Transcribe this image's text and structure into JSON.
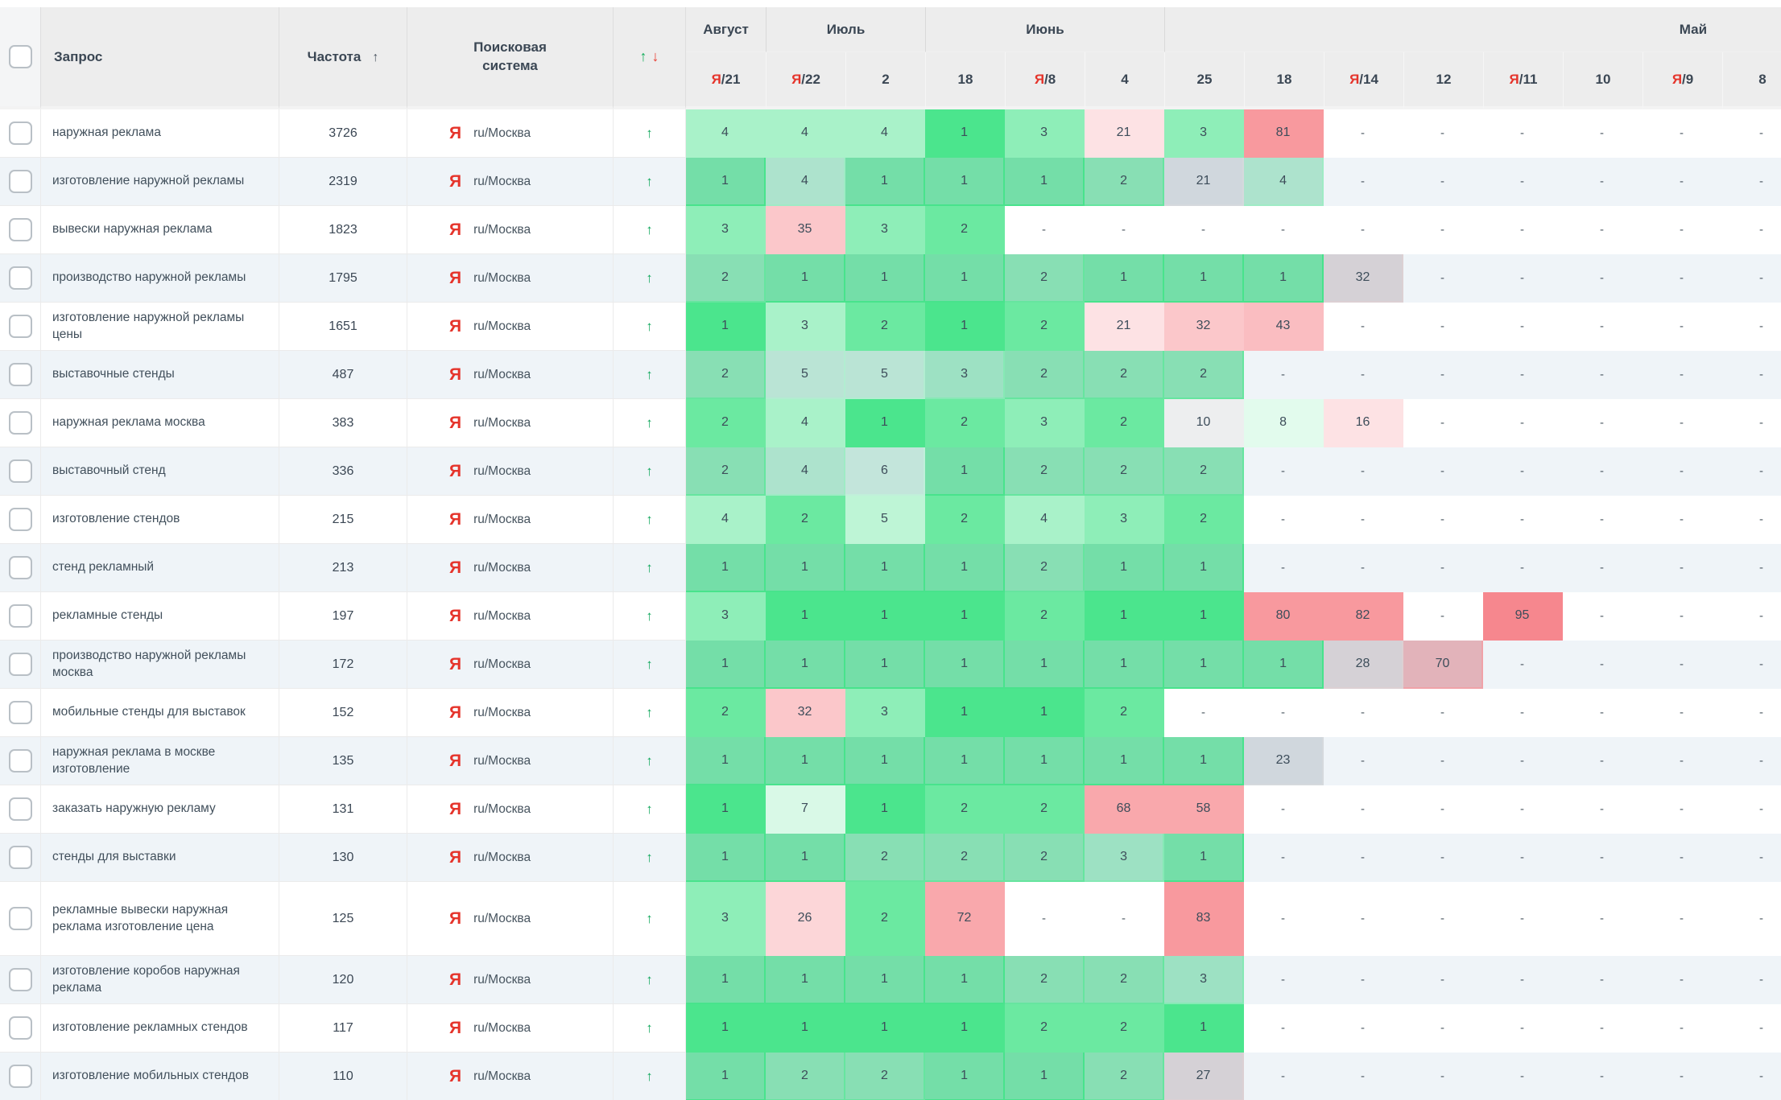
{
  "header": {
    "query": "Запрос",
    "frequency": "Частота",
    "frequency_sort_arrow": "↑",
    "search_engine": "Поисковая система",
    "trend_up": "↑",
    "trend_down": "↓"
  },
  "columns": {
    "months": [
      {
        "key": "august",
        "label": "Август",
        "span": 1
      },
      {
        "key": "july",
        "label": "Июль",
        "span": 2
      },
      {
        "key": "june",
        "label": "Июнь",
        "span": 3
      },
      {
        "key": "may",
        "label": "Май",
        "span": 8,
        "align": "right"
      }
    ],
    "dates": [
      {
        "ya": true,
        "day": "21"
      },
      {
        "ya": true,
        "day": "22"
      },
      {
        "ya": false,
        "day": "2"
      },
      {
        "ya": false,
        "day": "18"
      },
      {
        "ya": true,
        "day": "8"
      },
      {
        "ya": false,
        "day": "4"
      },
      {
        "ya": false,
        "day": "25"
      },
      {
        "ya": false,
        "day": "18"
      },
      {
        "ya": true,
        "day": "14"
      },
      {
        "ya": false,
        "day": "12"
      },
      {
        "ya": true,
        "day": "11"
      },
      {
        "ya": false,
        "day": "10"
      },
      {
        "ya": true,
        "day": "9"
      },
      {
        "ya": false,
        "day": "8"
      }
    ]
  },
  "search_engine": {
    "icon": "Я",
    "region": "ru/Москва"
  },
  "trend_arrow": "↑",
  "colors": {
    "accent_green": "#10a85c",
    "accent_red": "#e8392f",
    "yandex_red": "#e5342b",
    "stripe": "#eff4f8",
    "header_bg": "#ededed"
  },
  "palette": {
    "g1": "rgba(30,222,113,0.80)",
    "g2": "rgba(30,222,113,0.66)",
    "g3": "rgba(30,222,113,0.50)",
    "g4": "rgba(30,222,113,0.38)",
    "g5": "rgba(30,222,113,0.29)",
    "g6": "rgba(30,222,113,0.22)",
    "g7": "rgba(30,222,113,0.17)",
    "g8": "rgba(30,222,113,0.13)",
    "gy": "rgba(128,134,140,0.14)",
    "gy2": "rgba(128,134,140,0.24)",
    "gp": "rgba(165,105,105,0.26)",
    "p1": "rgba(241,62,72,0.15)",
    "p2": "rgba(241,62,72,0.21)",
    "p3": "rgba(241,62,72,0.29)",
    "p4": "rgba(241,62,72,0.34)",
    "r1": "rgba(241,62,72,0.45)",
    "r2": "rgba(241,62,72,0.53)",
    "r3": "rgba(241,62,72,0.62)",
    "w": "transparent"
  },
  "rows": [
    {
      "query": "наружная реклама",
      "frequency": "3726",
      "cells": [
        [
          "4",
          "g4"
        ],
        [
          "4",
          "g4"
        ],
        [
          "4",
          "g4"
        ],
        [
          "1",
          "g1"
        ],
        [
          "3",
          "g3"
        ],
        [
          "21",
          "p1"
        ],
        [
          "3",
          "g3"
        ],
        [
          "81",
          "r2"
        ],
        [
          "-",
          "w"
        ],
        [
          "-",
          "w"
        ],
        [
          "-",
          "w"
        ],
        [
          "-",
          "w"
        ],
        [
          "-",
          "w"
        ],
        [
          "-",
          "w"
        ]
      ]
    },
    {
      "query": "изготовление наружной рекламы",
      "frequency": "2319",
      "cells": [
        [
          "1",
          "g1"
        ],
        [
          "4",
          "g4"
        ],
        [
          "1",
          "g1"
        ],
        [
          "1",
          "g1"
        ],
        [
          "1",
          "g1"
        ],
        [
          "2",
          "g2"
        ],
        [
          "21",
          "gy2"
        ],
        [
          "4",
          "g4"
        ],
        [
          "-",
          "w"
        ],
        [
          "-",
          "w"
        ],
        [
          "-",
          "w"
        ],
        [
          "-",
          "w"
        ],
        [
          "-",
          "w"
        ],
        [
          "-",
          "w"
        ]
      ]
    },
    {
      "query": "вывески наружная реклама",
      "frequency": "1823",
      "cells": [
        [
          "3",
          "g3"
        ],
        [
          "35",
          "p3"
        ],
        [
          "3",
          "g3"
        ],
        [
          "2",
          "g2"
        ],
        [
          "-",
          "w"
        ],
        [
          "-",
          "w"
        ],
        [
          "-",
          "w"
        ],
        [
          "-",
          "w"
        ],
        [
          "-",
          "w"
        ],
        [
          "-",
          "w"
        ],
        [
          "-",
          "w"
        ],
        [
          "-",
          "w"
        ],
        [
          "-",
          "w"
        ],
        [
          "-",
          "w"
        ]
      ]
    },
    {
      "query": "производство наружной рекламы",
      "frequency": "1795",
      "cells": [
        [
          "2",
          "g2"
        ],
        [
          "1",
          "g1"
        ],
        [
          "1",
          "g1"
        ],
        [
          "1",
          "g1"
        ],
        [
          "2",
          "g2"
        ],
        [
          "1",
          "g1"
        ],
        [
          "1",
          "g1"
        ],
        [
          "1",
          "g1"
        ],
        [
          "32",
          "gp"
        ],
        [
          "-",
          "w"
        ],
        [
          "-",
          "w"
        ],
        [
          "-",
          "w"
        ],
        [
          "-",
          "w"
        ],
        [
          "-",
          "w"
        ]
      ]
    },
    {
      "query": "изготовление наружной рекламы цены",
      "frequency": "1651",
      "cells": [
        [
          "1",
          "g1"
        ],
        [
          "3",
          "g4"
        ],
        [
          "2",
          "g2"
        ],
        [
          "1",
          "g1"
        ],
        [
          "2",
          "g2"
        ],
        [
          "21",
          "p1"
        ],
        [
          "32",
          "p3"
        ],
        [
          "43",
          "p4"
        ],
        [
          "-",
          "w"
        ],
        [
          "-",
          "w"
        ],
        [
          "-",
          "w"
        ],
        [
          "-",
          "w"
        ],
        [
          "-",
          "w"
        ],
        [
          "-",
          "w"
        ]
      ]
    },
    {
      "query": "выставочные стенды",
      "frequency": "487",
      "cells": [
        [
          "2",
          "g2"
        ],
        [
          "5",
          "g5"
        ],
        [
          "5",
          "g5"
        ],
        [
          "3",
          "g3"
        ],
        [
          "2",
          "g2"
        ],
        [
          "2",
          "g2"
        ],
        [
          "2",
          "g2"
        ],
        [
          "-",
          "w"
        ],
        [
          "-",
          "w"
        ],
        [
          "-",
          "w"
        ],
        [
          "-",
          "w"
        ],
        [
          "-",
          "w"
        ],
        [
          "-",
          "w"
        ],
        [
          "-",
          "w"
        ]
      ]
    },
    {
      "query": "наружная реклама москва",
      "frequency": "383",
      "cells": [
        [
          "2",
          "g2"
        ],
        [
          "4",
          "g4"
        ],
        [
          "1",
          "g1"
        ],
        [
          "2",
          "g2"
        ],
        [
          "3",
          "g3"
        ],
        [
          "2",
          "g2"
        ],
        [
          "10",
          "gy"
        ],
        [
          "8",
          "g8"
        ],
        [
          "16",
          "p1"
        ],
        [
          "-",
          "w"
        ],
        [
          "-",
          "w"
        ],
        [
          "-",
          "w"
        ],
        [
          "-",
          "w"
        ],
        [
          "-",
          "w"
        ]
      ]
    },
    {
      "query": "выставочный стенд",
      "frequency": "336",
      "cells": [
        [
          "2",
          "g2"
        ],
        [
          "4",
          "g4"
        ],
        [
          "6",
          "g6"
        ],
        [
          "1",
          "g1"
        ],
        [
          "2",
          "g2"
        ],
        [
          "2",
          "g2"
        ],
        [
          "2",
          "g2"
        ],
        [
          "-",
          "w"
        ],
        [
          "-",
          "w"
        ],
        [
          "-",
          "w"
        ],
        [
          "-",
          "w"
        ],
        [
          "-",
          "w"
        ],
        [
          "-",
          "w"
        ],
        [
          "-",
          "w"
        ]
      ]
    },
    {
      "query": "изготовление стендов",
      "frequency": "215",
      "cells": [
        [
          "4",
          "g4"
        ],
        [
          "2",
          "g2"
        ],
        [
          "5",
          "g5"
        ],
        [
          "2",
          "g2"
        ],
        [
          "4",
          "g4"
        ],
        [
          "3",
          "g3"
        ],
        [
          "2",
          "g2"
        ],
        [
          "-",
          "w"
        ],
        [
          "-",
          "w"
        ],
        [
          "-",
          "w"
        ],
        [
          "-",
          "w"
        ],
        [
          "-",
          "w"
        ],
        [
          "-",
          "w"
        ],
        [
          "-",
          "w"
        ]
      ]
    },
    {
      "query": "стенд рекламный",
      "frequency": "213",
      "cells": [
        [
          "1",
          "g1"
        ],
        [
          "1",
          "g1"
        ],
        [
          "1",
          "g1"
        ],
        [
          "1",
          "g1"
        ],
        [
          "2",
          "g2"
        ],
        [
          "1",
          "g1"
        ],
        [
          "1",
          "g1"
        ],
        [
          "-",
          "w"
        ],
        [
          "-",
          "w"
        ],
        [
          "-",
          "w"
        ],
        [
          "-",
          "w"
        ],
        [
          "-",
          "w"
        ],
        [
          "-",
          "w"
        ],
        [
          "-",
          "w"
        ]
      ]
    },
    {
      "query": "рекламные стенды",
      "frequency": "197",
      "cells": [
        [
          "3",
          "g3"
        ],
        [
          "1",
          "g1"
        ],
        [
          "1",
          "g1"
        ],
        [
          "1",
          "g1"
        ],
        [
          "2",
          "g2"
        ],
        [
          "1",
          "g1"
        ],
        [
          "1",
          "g1"
        ],
        [
          "80",
          "r2"
        ],
        [
          "82",
          "r2"
        ],
        [
          "-",
          "w"
        ],
        [
          "95",
          "r3"
        ],
        [
          "-",
          "w"
        ],
        [
          "-",
          "w"
        ],
        [
          "-",
          "w"
        ]
      ]
    },
    {
      "query": "производство наружной рекламы москва",
      "frequency": "172",
      "cells": [
        [
          "1",
          "g1"
        ],
        [
          "1",
          "g1"
        ],
        [
          "1",
          "g1"
        ],
        [
          "1",
          "g1"
        ],
        [
          "1",
          "g1"
        ],
        [
          "1",
          "g1"
        ],
        [
          "1",
          "g1"
        ],
        [
          "1",
          "g1"
        ],
        [
          "28",
          "gp"
        ],
        [
          "70",
          "r1"
        ],
        [
          "-",
          "w"
        ],
        [
          "-",
          "w"
        ],
        [
          "-",
          "w"
        ],
        [
          "-",
          "w"
        ]
      ]
    },
    {
      "query": "мобильные стенды для выставок",
      "frequency": "152",
      "cells": [
        [
          "2",
          "g2"
        ],
        [
          "32",
          "p3"
        ],
        [
          "3",
          "g3"
        ],
        [
          "1",
          "g1"
        ],
        [
          "1",
          "g1"
        ],
        [
          "2",
          "g2"
        ],
        [
          "-",
          "w"
        ],
        [
          "-",
          "w"
        ],
        [
          "-",
          "w"
        ],
        [
          "-",
          "w"
        ],
        [
          "-",
          "w"
        ],
        [
          "-",
          "w"
        ],
        [
          "-",
          "w"
        ],
        [
          "-",
          "w"
        ]
      ]
    },
    {
      "query": "наружная реклама в москве изготовление",
      "frequency": "135",
      "cells": [
        [
          "1",
          "g1"
        ],
        [
          "1",
          "g1"
        ],
        [
          "1",
          "g1"
        ],
        [
          "1",
          "g1"
        ],
        [
          "1",
          "g1"
        ],
        [
          "1",
          "g1"
        ],
        [
          "1",
          "g1"
        ],
        [
          "23",
          "gy2"
        ],
        [
          "-",
          "w"
        ],
        [
          "-",
          "w"
        ],
        [
          "-",
          "w"
        ],
        [
          "-",
          "w"
        ],
        [
          "-",
          "w"
        ],
        [
          "-",
          "w"
        ]
      ]
    },
    {
      "query": "заказать наружную рекламу",
      "frequency": "131",
      "cells": [
        [
          "1",
          "g1"
        ],
        [
          "7",
          "g7"
        ],
        [
          "1",
          "g1"
        ],
        [
          "2",
          "g2"
        ],
        [
          "2",
          "g2"
        ],
        [
          "68",
          "r1"
        ],
        [
          "58",
          "r1"
        ],
        [
          "-",
          "w"
        ],
        [
          "-",
          "w"
        ],
        [
          "-",
          "w"
        ],
        [
          "-",
          "w"
        ],
        [
          "-",
          "w"
        ],
        [
          "-",
          "w"
        ],
        [
          "-",
          "w"
        ]
      ]
    },
    {
      "query": "стенды для выставки",
      "frequency": "130",
      "cells": [
        [
          "1",
          "g1"
        ],
        [
          "1",
          "g1"
        ],
        [
          "2",
          "g2"
        ],
        [
          "2",
          "g2"
        ],
        [
          "2",
          "g2"
        ],
        [
          "3",
          "g3"
        ],
        [
          "1",
          "g1"
        ],
        [
          "-",
          "w"
        ],
        [
          "-",
          "w"
        ],
        [
          "-",
          "w"
        ],
        [
          "-",
          "w"
        ],
        [
          "-",
          "w"
        ],
        [
          "-",
          "w"
        ],
        [
          "-",
          "w"
        ]
      ]
    },
    {
      "query": "рекламные вывески наружная реклама изготовление цена",
      "frequency": "125",
      "tall": true,
      "cells": [
        [
          "3",
          "g3"
        ],
        [
          "26",
          "p2"
        ],
        [
          "2",
          "g2"
        ],
        [
          "72",
          "r1"
        ],
        [
          "-",
          "w"
        ],
        [
          "-",
          "w"
        ],
        [
          "83",
          "r2"
        ],
        [
          "-",
          "w"
        ],
        [
          "-",
          "w"
        ],
        [
          "-",
          "w"
        ],
        [
          "-",
          "w"
        ],
        [
          "-",
          "w"
        ],
        [
          "-",
          "w"
        ],
        [
          "-",
          "w"
        ]
      ]
    },
    {
      "query": "изготовление коробов наружная реклама",
      "frequency": "120",
      "cells": [
        [
          "1",
          "g1"
        ],
        [
          "1",
          "g1"
        ],
        [
          "1",
          "g1"
        ],
        [
          "1",
          "g1"
        ],
        [
          "2",
          "g2"
        ],
        [
          "2",
          "g2"
        ],
        [
          "3",
          "g3"
        ],
        [
          "-",
          "w"
        ],
        [
          "-",
          "w"
        ],
        [
          "-",
          "w"
        ],
        [
          "-",
          "w"
        ],
        [
          "-",
          "w"
        ],
        [
          "-",
          "w"
        ],
        [
          "-",
          "w"
        ]
      ]
    },
    {
      "query": "изготовление рекламных стендов",
      "frequency": "117",
      "cells": [
        [
          "1",
          "g1"
        ],
        [
          "1",
          "g1"
        ],
        [
          "1",
          "g1"
        ],
        [
          "1",
          "g1"
        ],
        [
          "2",
          "g2"
        ],
        [
          "2",
          "g2"
        ],
        [
          "1",
          "g1"
        ],
        [
          "-",
          "w"
        ],
        [
          "-",
          "w"
        ],
        [
          "-",
          "w"
        ],
        [
          "-",
          "w"
        ],
        [
          "-",
          "w"
        ],
        [
          "-",
          "w"
        ],
        [
          "-",
          "w"
        ]
      ]
    },
    {
      "query": "изготовление мобильных стендов",
      "frequency": "110",
      "cells": [
        [
          "1",
          "g1"
        ],
        [
          "2",
          "g2"
        ],
        [
          "2",
          "g2"
        ],
        [
          "1",
          "g1"
        ],
        [
          "1",
          "g1"
        ],
        [
          "2",
          "g2"
        ],
        [
          "27",
          "gp"
        ],
        [
          "-",
          "w"
        ],
        [
          "-",
          "w"
        ],
        [
          "-",
          "w"
        ],
        [
          "-",
          "w"
        ],
        [
          "-",
          "w"
        ],
        [
          "-",
          "w"
        ],
        [
          "-",
          "w"
        ]
      ]
    }
  ]
}
